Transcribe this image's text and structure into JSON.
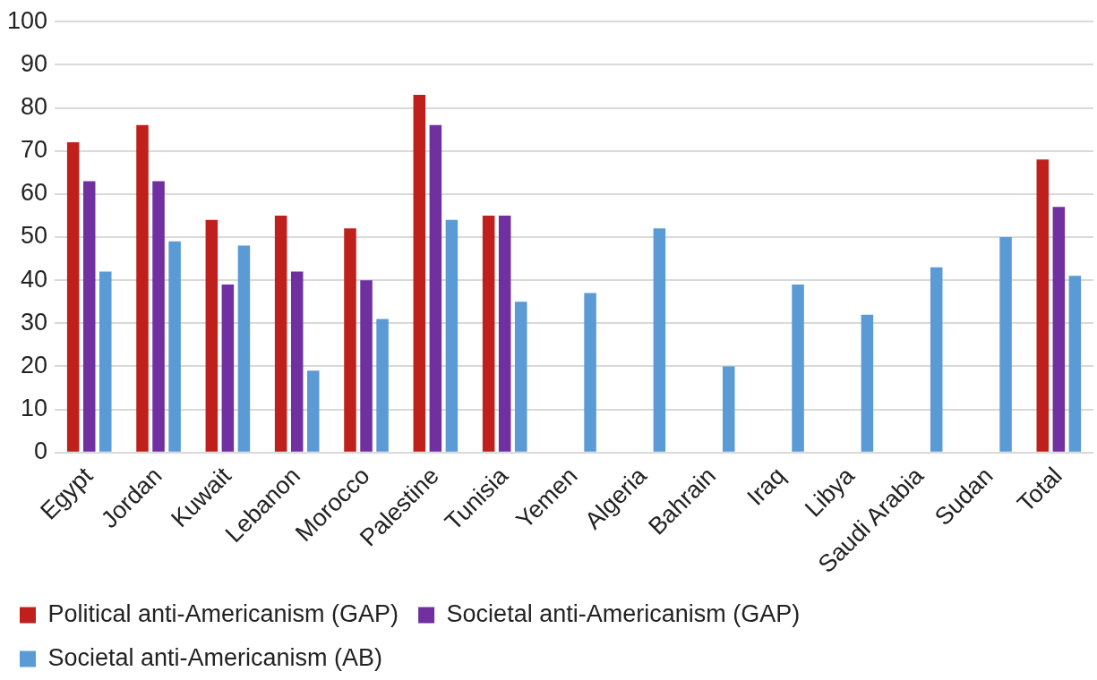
{
  "chart_data": {
    "type": "bar",
    "categories": [
      "Egypt",
      "Jordan",
      "Kuwait",
      "Lebanon",
      "Morocco",
      "Palestine",
      "Tunisia",
      "Yemen",
      "Algeria",
      "Bahrain",
      "Iraq",
      "Libya",
      "Saudi Arabia",
      "Sudan",
      "Total"
    ],
    "series": [
      {
        "name": "Political anti-Americanism (GAP)",
        "color": "#c0201c",
        "values": [
          72,
          76,
          54,
          55,
          52,
          83,
          55,
          null,
          null,
          null,
          null,
          null,
          null,
          null,
          68
        ]
      },
      {
        "name": "Societal anti-Americanism (GAP)",
        "color": "#7030a0",
        "values": [
          63,
          63,
          39,
          42,
          40,
          76,
          55,
          null,
          null,
          null,
          null,
          null,
          null,
          null,
          57
        ]
      },
      {
        "name": "Societal anti-Americanism (AB)",
        "color": "#5b9bd5",
        "values": [
          42,
          49,
          48,
          19,
          31,
          54,
          35,
          37,
          52,
          20,
          39,
          32,
          43,
          50,
          41
        ]
      }
    ],
    "ylim": [
      0,
      100
    ],
    "yticks": [
      0,
      10,
      20,
      30,
      40,
      50,
      60,
      70,
      80,
      90,
      100
    ],
    "grid": "y",
    "legend": "bottom"
  }
}
